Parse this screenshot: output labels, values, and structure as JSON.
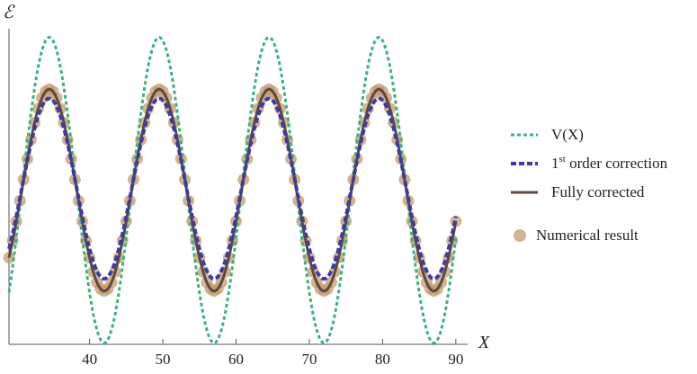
{
  "chart_data": {
    "type": "line",
    "xlabel": "X",
    "ylabel": "ℰ",
    "xlim": [
      29,
      91
    ],
    "x_ticks": [
      40,
      50,
      60,
      70,
      80,
      90
    ],
    "x_tick_labels": [
      "40",
      "50",
      "60",
      "70",
      "80",
      "90"
    ],
    "y_tick_labels": [],
    "grid": false,
    "legend_position": "right",
    "period": 15,
    "series": [
      {
        "name": "V(X)",
        "style": "dotted",
        "color": "#3cb37a",
        "phase_x": 34.5,
        "amplitude": 1.0,
        "offset": 0.0,
        "x": [
          29,
          34.5,
          42,
          49.5,
          57,
          64.5,
          72,
          79.5,
          87,
          90
        ],
        "y": [
          -0.38,
          1.0,
          -1.0,
          1.0,
          -1.0,
          1.0,
          -1.0,
          1.0,
          -1.0,
          -0.38
        ]
      },
      {
        "name": "1st order correction",
        "name_base": "1",
        "name_sup": "st",
        "name_rest": " order correction",
        "style": "dashed",
        "color": "#3d3aa8",
        "phase_x": 34.5,
        "amplitude": 0.59,
        "offset": 0.01,
        "x": [
          34.5,
          42,
          49.5,
          57,
          64.5,
          72,
          79.5,
          87
        ],
        "y": [
          0.6,
          -0.58,
          0.6,
          -0.58,
          0.6,
          -0.58,
          0.6,
          -0.58
        ]
      },
      {
        "name": "Fully corrected",
        "style": "solid",
        "color": "#5b4a3f",
        "phase_x": 34.5,
        "amplitude": 0.66,
        "offset": 0.0,
        "x": [
          34.5,
          42,
          49.5,
          57,
          64.5,
          72,
          79.5,
          87
        ],
        "y": [
          0.66,
          -0.66,
          0.66,
          -0.66,
          0.66,
          -0.66,
          0.66,
          -0.66
        ]
      },
      {
        "name": "Numerical result",
        "style": "markers",
        "color": "#c49a6c",
        "phase_x": 34.5,
        "amplitude": 0.66,
        "offset": 0.0,
        "marker_spacing": 0.5
      }
    ]
  }
}
